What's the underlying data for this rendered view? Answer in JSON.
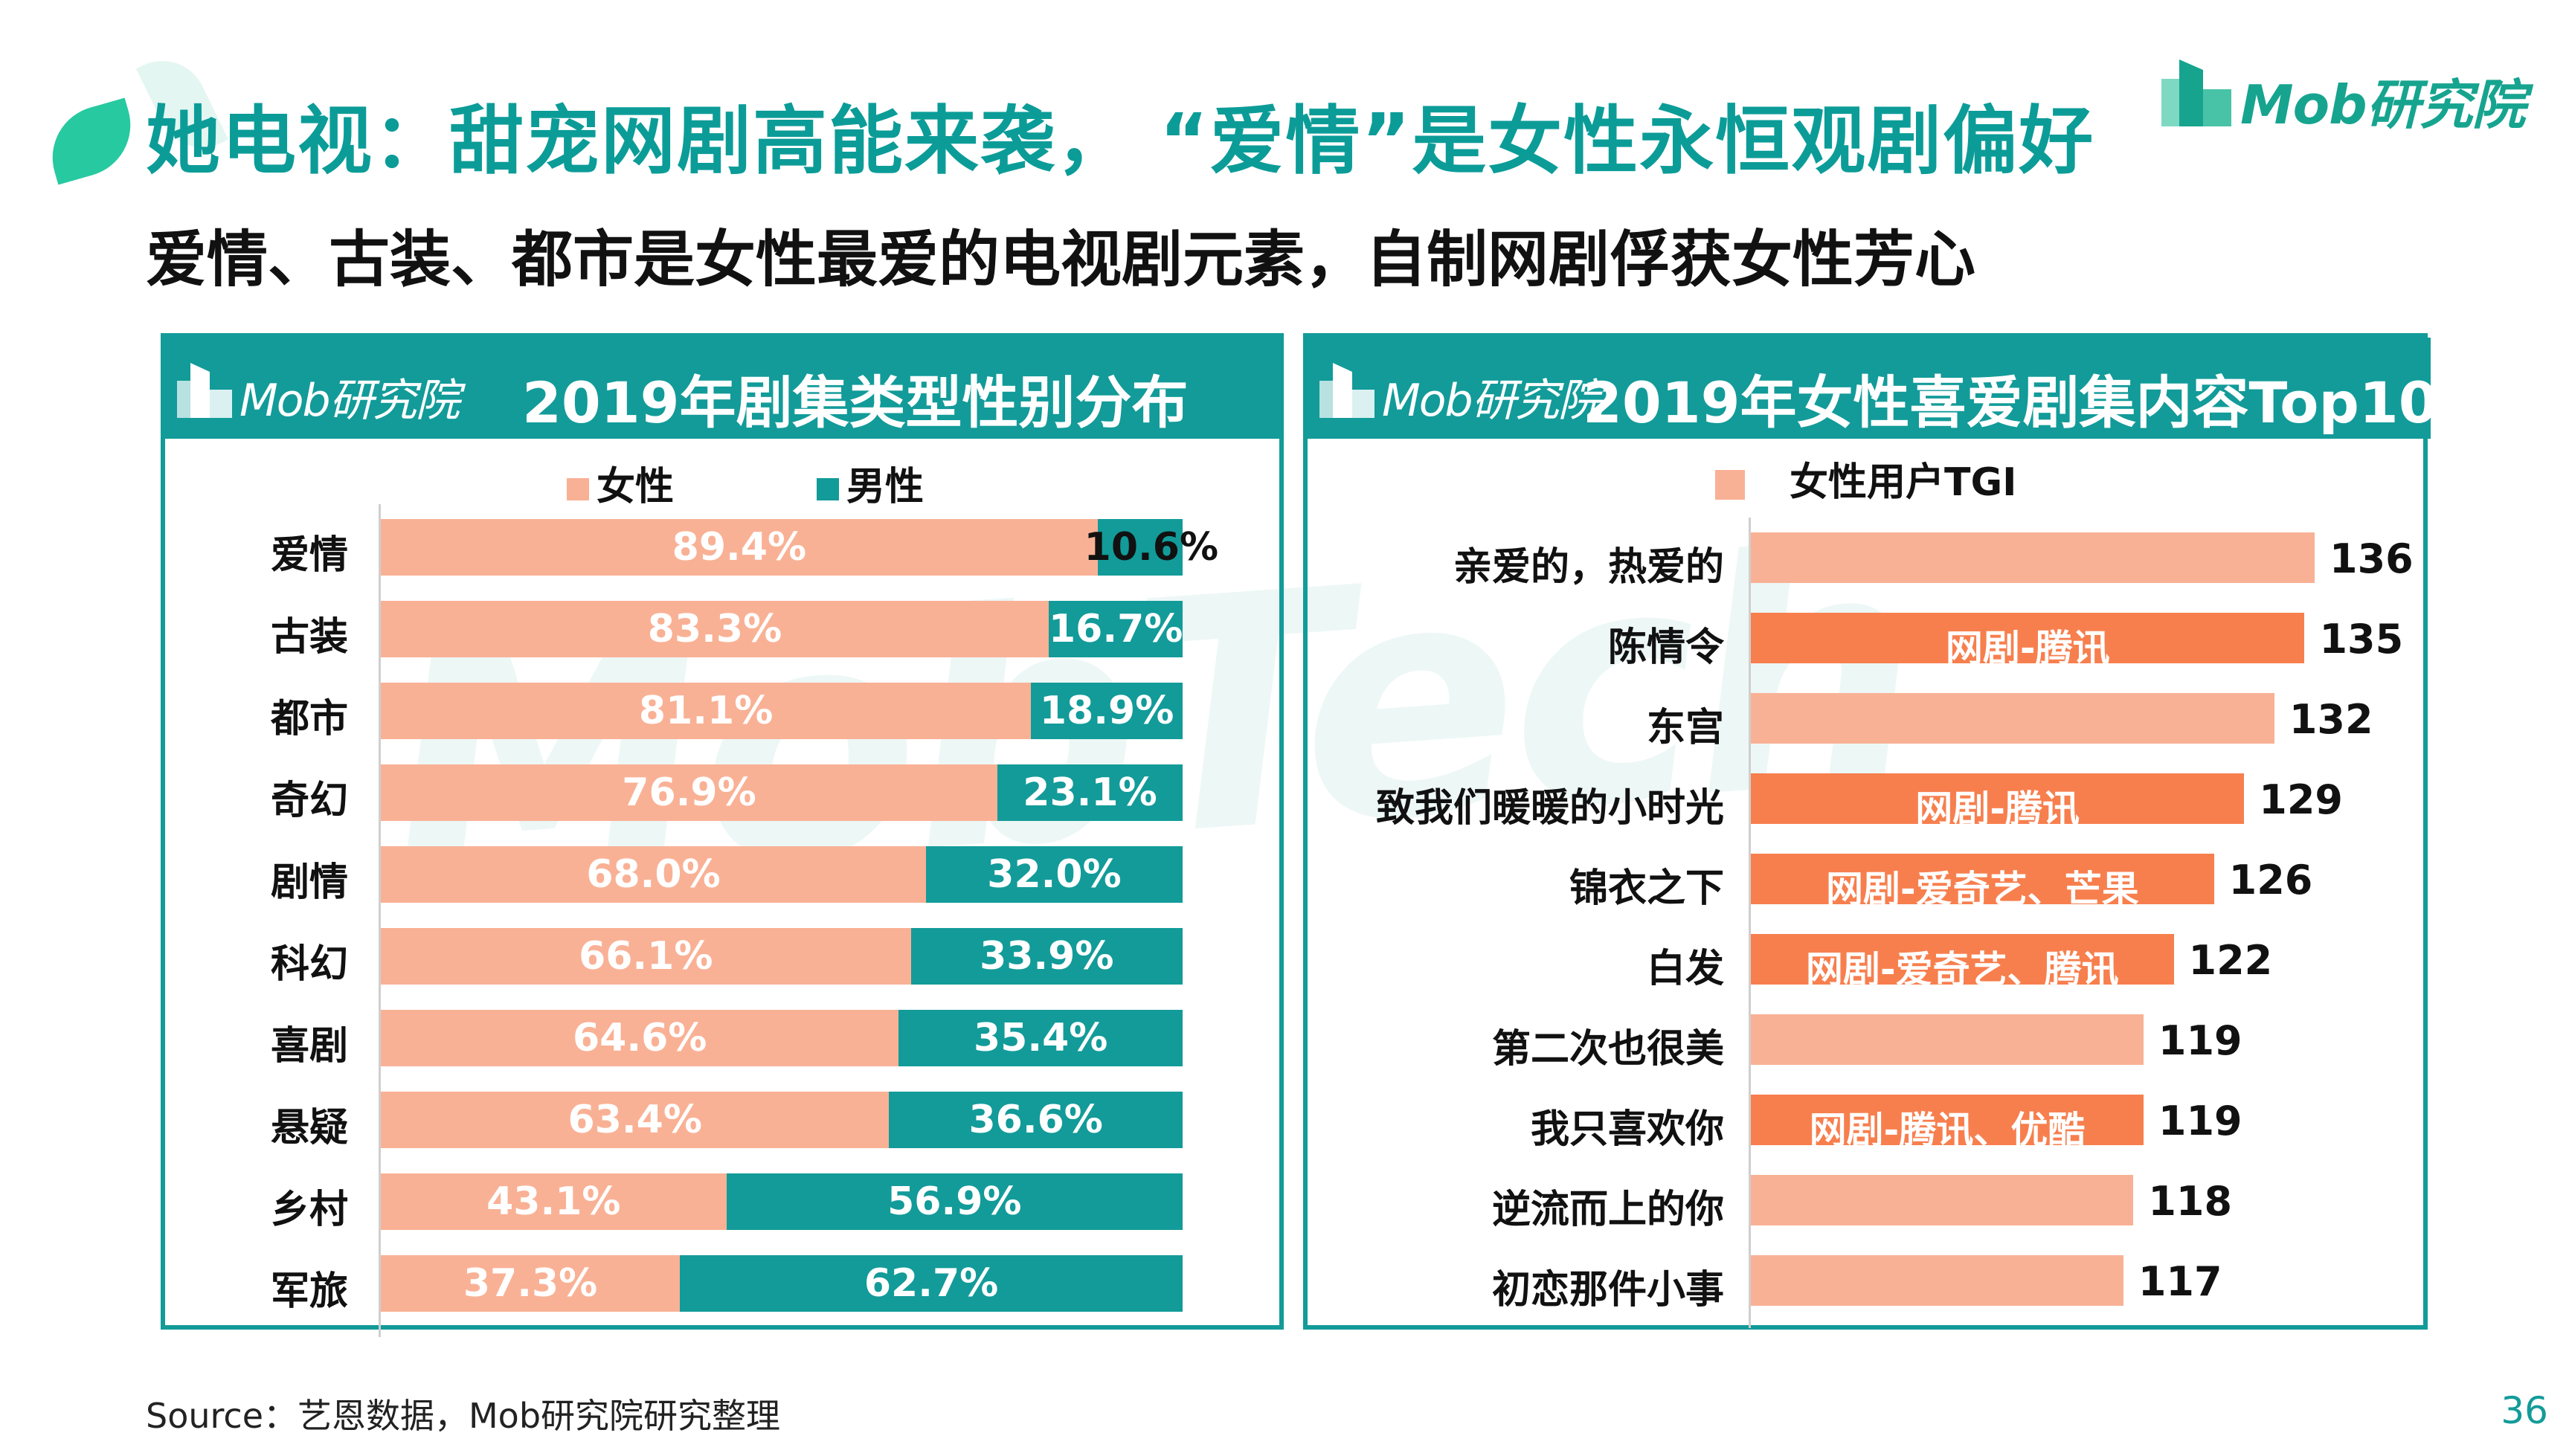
{
  "header": {
    "title": "她电视：甜宠网剧高能来袭，  “爱情”是女性永恒观剧偏好",
    "subtitle": "爱情、古装、都市是女性最爱的电视剧元素，自制网剧俘获女性芳心",
    "brand": "Mob研究院"
  },
  "watermark": "MobTech",
  "colors": {
    "accent": "#129b99",
    "female": "#f9b195",
    "highlight": "#f77f4e"
  },
  "chart_data": [
    {
      "type": "bar",
      "orientation": "horizontal-stacked-100",
      "title": "2019年剧集类型性别分布",
      "logo": "Mob研究院",
      "legend": [
        "女性",
        "男性"
      ],
      "categories": [
        "爱情",
        "古装",
        "都市",
        "奇幻",
        "剧情",
        "科幻",
        "喜剧",
        "悬疑",
        "乡村",
        "军旅"
      ],
      "series": [
        {
          "name": "女性",
          "values": [
            89.4,
            83.3,
            81.1,
            76.9,
            68.0,
            66.1,
            64.6,
            63.4,
            43.1,
            37.3
          ],
          "labels": [
            "89.4%",
            "83.3%",
            "81.1%",
            "76.9%",
            "68.0%",
            "66.1%",
            "64.6%",
            "63.4%",
            "43.1%",
            "37.3%"
          ]
        },
        {
          "name": "男性",
          "values": [
            10.6,
            16.7,
            18.9,
            23.1,
            32.0,
            33.9,
            35.4,
            36.6,
            56.9,
            62.7
          ],
          "labels": [
            "10.6%",
            "16.7%",
            "18.9%",
            "23.1%",
            "32.0%",
            "33.9%",
            "35.4%",
            "36.6%",
            "56.9%",
            "62.7%"
          ]
        }
      ]
    },
    {
      "type": "bar",
      "orientation": "horizontal",
      "title": "2019年女性喜爱剧集内容Top10",
      "logo": "Mob研究院",
      "legend": [
        "女性用户TGI"
      ],
      "categories": [
        "亲爱的，热爱的",
        "陈情令",
        "东宫",
        "致我们暖暖的小时光",
        "锦衣之下",
        "白发",
        "第二次也很美",
        "我只喜欢你",
        "逆流而上的你",
        "初恋那件小事"
      ],
      "values": [
        136,
        135,
        132,
        129,
        126,
        122,
        119,
        119,
        118,
        117
      ],
      "value_labels": [
        "136",
        "135",
        "132",
        "129",
        "126",
        "122",
        "119",
        "119",
        "118",
        "117"
      ],
      "tags": [
        "",
        "网剧-腾讯",
        "",
        "网剧-腾讯",
        "网剧-爱奇艺、芒果",
        "网剧-爱奇艺、腾讯",
        "",
        "网剧-腾讯、优酷",
        "",
        ""
      ]
    }
  ],
  "footer": {
    "source": "Source：艺恩数据，Mob研究院研究整理",
    "page": "36"
  }
}
